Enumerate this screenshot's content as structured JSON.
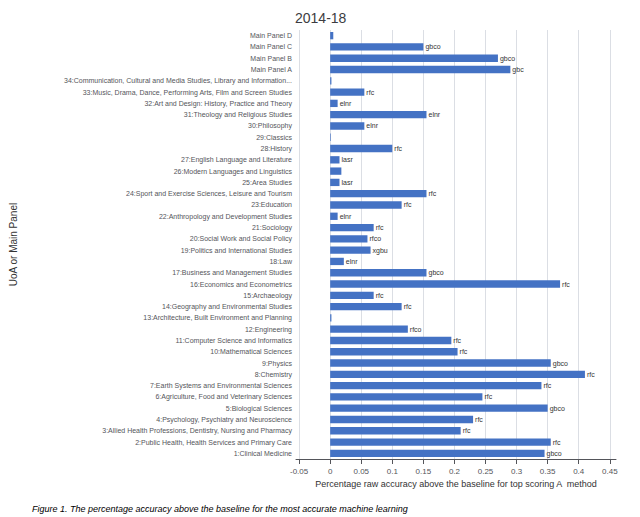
{
  "chart_data": {
    "type": "bar",
    "orientation": "horizontal",
    "title": "2014-18",
    "xlabel": "Percentage raw accuracy above the baseline for top scoring A  method",
    "ylabel": "UoA or Main Panel",
    "caption": "Figure 1. The percentage accuracy above the baseline for the most accurate machine learning",
    "color": "#4472C4",
    "grid": true,
    "xlim": [
      -0.055,
      0.46
    ],
    "xticks": [
      -0.05,
      0,
      0.05,
      0.1,
      0.15,
      0.2,
      0.25,
      0.3,
      0.35,
      0.4,
      0.45
    ],
    "categories": [
      "Main Panel D",
      "Main Panel C",
      "Main Panel B",
      "Main Panel A",
      "34:Communication, Cultural and Media Studies, Library and Information...",
      "33:Music, Drama, Dance, Performing Arts, Film and Screen Studies",
      "32:Art and Design: History, Practice and Theory",
      "31:Theology and Religious Studies",
      "30:Philosophy",
      "29:Classics",
      "28:History",
      "27:English Language and Literature",
      "26:Modern Languages and Linguistics",
      "25:Area Studies",
      "24:Sport and Exercise Sciences, Leisure and Tourism",
      "23:Education",
      "22:Anthropology and Development Studies",
      "21:Sociology",
      "20:Social Work and Social Policy",
      "19:Politics and International Studies",
      "18:Law",
      "17:Business and Management Studies",
      "16:Economics and Econometrics",
      "15:Archaeology",
      "14:Geography and Environmental Studies",
      "13:Architecture, Built Environment and Planning",
      "12:Engineering",
      "11:Computer Science and Informatics",
      "10:Mathematical Sciences",
      "9:Physics",
      "8:Chemistry",
      "7:Earth Systems and Environmental Sciences",
      "6:Agriculture, Food and Veterinary Sciences",
      "5:Biological Sciences",
      "4:Psychology, Psychiatry and Neuroscience",
      "3:Allied Health Professions, Dentistry, Nursing and Pharmacy",
      "2:Public Health, Health Services and Primary Care",
      "1:Clinical Medicine"
    ],
    "values": [
      0.005,
      0.15,
      0.27,
      0.29,
      0.002,
      0.055,
      0.012,
      0.155,
      0.055,
      0.001,
      0.1,
      0.015,
      0.018,
      0.015,
      0.155,
      0.115,
      0.012,
      0.07,
      0.06,
      0.065,
      0.022,
      0.155,
      0.37,
      0.07,
      0.115,
      0.002,
      0.125,
      0.195,
      0.205,
      0.355,
      0.41,
      0.34,
      0.245,
      0.35,
      0.23,
      0.21,
      0.355,
      0.345
    ],
    "annotations": [
      null,
      "gbco",
      "gbco",
      "gbc",
      null,
      "rfc",
      "elnr",
      "elnr",
      "elnr",
      null,
      "rfc",
      "lasr",
      null,
      "lasr",
      "rfc",
      "rfc",
      "elnr",
      "rfc",
      "rfco",
      "xgbu",
      "elnr",
      "gbco",
      "rfc",
      "rfc",
      "rfc",
      null,
      "rfco",
      "rfc",
      "rfc",
      "gbco",
      "rfc",
      "rfc",
      "rfc",
      "gbco",
      "rfc",
      "rfc",
      "rfc",
      "gbco"
    ]
  }
}
